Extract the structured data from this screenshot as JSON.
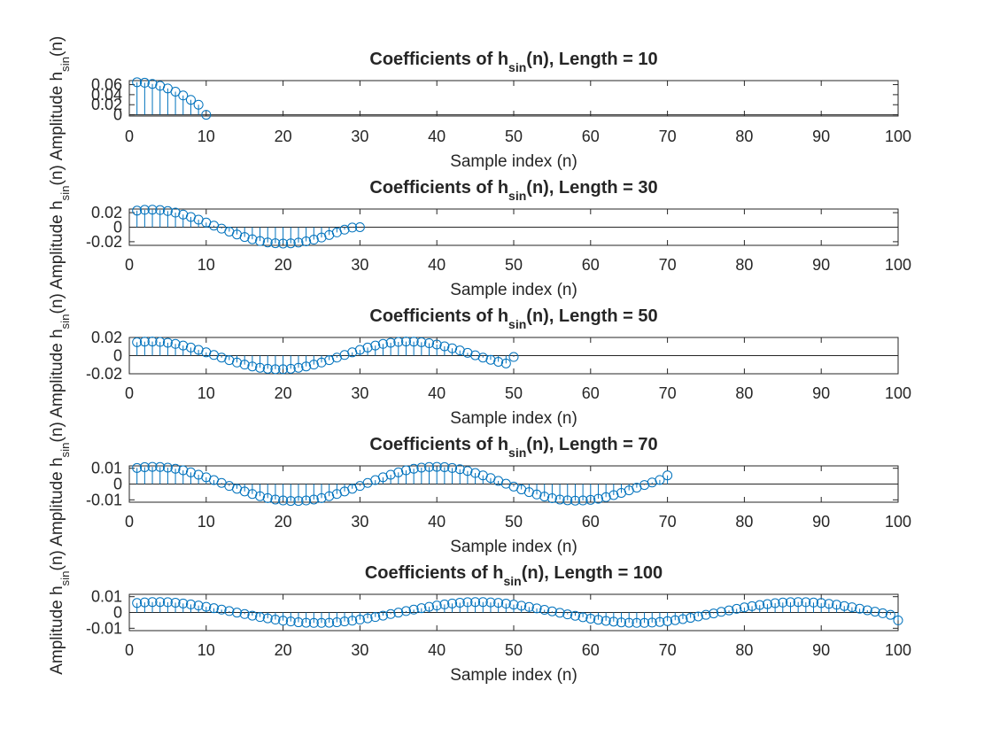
{
  "figure": {
    "background": "#ffffff",
    "axes_color": "#262626",
    "stem_color": "#0072BD"
  },
  "chart_data": [
    {
      "type": "stem",
      "title": {
        "pre": "Coefficients of h",
        "sub": "sin",
        "post": "(n), Length = 10"
      },
      "xlabel": "Sample index (n)",
      "ylabel": {
        "pre": "Amplitude h",
        "sub": "sin",
        "post": "(n)"
      },
      "xlim": [
        0,
        100
      ],
      "ylim": [
        -0.0025,
        0.068
      ],
      "xticks": [
        0,
        10,
        20,
        30,
        40,
        50,
        60,
        70,
        80,
        90,
        100
      ],
      "yticks": [
        0,
        0.02,
        0.04,
        0.06
      ],
      "ytick_labels": [
        "0",
        "0.02",
        "0.04",
        "0.06"
      ],
      "x": [
        1,
        2,
        3,
        4,
        5,
        6,
        7,
        8,
        9,
        10
      ],
      "y": [
        0.0648,
        0.0638,
        0.0614,
        0.0576,
        0.0524,
        0.046,
        0.0384,
        0.0297,
        0.02,
        0.0
      ]
    },
    {
      "type": "stem",
      "title": {
        "pre": "Coefficients of h",
        "sub": "sin",
        "post": "(n), Length = 30"
      },
      "xlabel": "Sample index (n)",
      "ylabel": {
        "pre": "Amplitude h",
        "sub": "sin",
        "post": "(n)"
      },
      "xlim": [
        0,
        100
      ],
      "ylim": [
        -0.025,
        0.025
      ],
      "xticks": [
        0,
        10,
        20,
        30,
        40,
        50,
        60,
        70,
        80,
        90,
        100
      ],
      "yticks": [
        -0.02,
        0,
        0.02
      ],
      "ytick_labels": [
        "-0.02",
        "0",
        "0.02"
      ],
      "x": [
        1,
        2,
        3,
        4,
        5,
        6,
        7,
        8,
        9,
        10,
        11,
        12,
        13,
        14,
        15,
        16,
        17,
        18,
        19,
        20,
        21,
        22,
        23,
        24,
        25,
        26,
        27,
        28,
        29,
        30
      ],
      "y": [
        0.0228,
        0.0239,
        0.0241,
        0.0236,
        0.0222,
        0.0201,
        0.0174,
        0.0141,
        0.0104,
        0.0064,
        0.0022,
        -0.002,
        -0.0061,
        -0.01,
        -0.0135,
        -0.0166,
        -0.0191,
        -0.021,
        -0.0221,
        -0.0225,
        -0.0222,
        -0.0212,
        -0.0195,
        -0.0171,
        -0.0142,
        -0.0108,
        -0.0072,
        -0.0034,
        -0.0005,
        0.0
      ]
    },
    {
      "type": "stem",
      "title": {
        "pre": "Coefficients of h",
        "sub": "sin",
        "post": "(n), Length = 50"
      },
      "xlabel": "Sample index (n)",
      "ylabel": {
        "pre": "Amplitude h",
        "sub": "sin",
        "post": "(n)"
      },
      "xlim": [
        0,
        100
      ],
      "ylim": [
        -0.02,
        0.02
      ],
      "xticks": [
        0,
        10,
        20,
        30,
        40,
        50,
        60,
        70,
        80,
        90,
        100
      ],
      "yticks": [
        -0.02,
        0,
        0.02
      ],
      "ytick_labels": [
        "-0.02",
        "0",
        "0.02"
      ],
      "x": [
        1,
        2,
        3,
        4,
        5,
        6,
        7,
        8,
        9,
        10,
        11,
        12,
        13,
        14,
        15,
        16,
        17,
        18,
        19,
        20,
        21,
        22,
        23,
        24,
        25,
        26,
        27,
        28,
        29,
        30,
        31,
        32,
        33,
        34,
        35,
        36,
        37,
        38,
        39,
        40,
        41,
        42,
        43,
        44,
        45,
        46,
        47,
        48,
        49,
        50
      ],
      "y": [
        0.0148,
        0.0154,
        0.0155,
        0.0151,
        0.0142,
        0.0129,
        0.0111,
        0.0089,
        0.0064,
        0.0036,
        0.0007,
        -0.0022,
        -0.005,
        -0.0076,
        -0.0099,
        -0.0119,
        -0.0134,
        -0.0145,
        -0.015,
        -0.015,
        -0.0145,
        -0.0134,
        -0.0119,
        -0.0099,
        -0.0076,
        -0.005,
        -0.0022,
        0.0007,
        0.0036,
        0.0064,
        0.0089,
        0.0111,
        0.0129,
        0.0142,
        0.0151,
        0.0155,
        0.0154,
        0.0148,
        0.0137,
        0.0122,
        0.0103,
        0.0081,
        0.0057,
        0.0031,
        0.0004,
        -0.0022,
        -0.0046,
        -0.0068,
        -0.0086,
        -0.0015
      ]
    },
    {
      "type": "stem",
      "title": {
        "pre": "Coefficients of h",
        "sub": "sin",
        "post": "(n), Length = 70"
      },
      "xlabel": "Sample index (n)",
      "ylabel": {
        "pre": "Amplitude h",
        "sub": "sin",
        "post": "(n)"
      },
      "xlim": [
        0,
        100
      ],
      "ylim": [
        -0.0115,
        0.0115
      ],
      "xticks": [
        0,
        10,
        20,
        30,
        40,
        50,
        60,
        70,
        80,
        90,
        100
      ],
      "yticks": [
        -0.01,
        0,
        0.01
      ],
      "ytick_labels": [
        "-0.01",
        "0",
        "0.01"
      ],
      "x": [
        1,
        2,
        3,
        4,
        5,
        6,
        7,
        8,
        9,
        10,
        11,
        12,
        13,
        14,
        15,
        16,
        17,
        18,
        19,
        20,
        21,
        22,
        23,
        24,
        25,
        26,
        27,
        28,
        29,
        30,
        31,
        32,
        33,
        34,
        35,
        36,
        37,
        38,
        39,
        40,
        41,
        42,
        43,
        44,
        45,
        46,
        47,
        48,
        49,
        50,
        51,
        52,
        53,
        54,
        55,
        56,
        57,
        58,
        59,
        60,
        61,
        62,
        63,
        64,
        65,
        66,
        67,
        68,
        69,
        70
      ],
      "y": [
        0.0102,
        0.0107,
        0.0109,
        0.0108,
        0.0104,
        0.0097,
        0.0087,
        0.0074,
        0.0059,
        0.0043,
        0.0025,
        0.0007,
        -0.0012,
        -0.003,
        -0.0047,
        -0.0063,
        -0.0077,
        -0.0089,
        -0.0098,
        -0.0104,
        -0.0107,
        -0.0107,
        -0.0104,
        -0.0098,
        -0.0089,
        -0.0077,
        -0.0063,
        -0.0047,
        -0.003,
        -0.0012,
        0.0007,
        0.0025,
        0.0043,
        0.0059,
        0.0074,
        0.0087,
        0.0097,
        0.0104,
        0.0108,
        0.0109,
        0.0107,
        0.0102,
        0.0094,
        0.0083,
        0.007,
        0.0055,
        0.0038,
        0.002,
        0.0002,
        -0.0016,
        -0.0034,
        -0.0051,
        -0.0066,
        -0.0079,
        -0.009,
        -0.0098,
        -0.0103,
        -0.0105,
        -0.0104,
        -0.01,
        -0.0093,
        -0.0083,
        -0.007,
        -0.0056,
        -0.004,
        -0.0023,
        -0.0006,
        0.001,
        0.0026,
        0.0055
      ]
    },
    {
      "type": "stem",
      "title": {
        "pre": "Coefficients of h",
        "sub": "sin",
        "post": "(n), Length = 100"
      },
      "xlabel": "Sample index (n)",
      "ylabel": {
        "pre": "Amplitude h",
        "sub": "sin",
        "post": "(n)"
      },
      "xlim": [
        0,
        100
      ],
      "ylim": [
        -0.0115,
        0.0115
      ],
      "xticks": [
        0,
        10,
        20,
        30,
        40,
        50,
        60,
        70,
        80,
        90,
        100
      ],
      "yticks": [
        -0.01,
        0,
        0.01
      ],
      "ytick_labels": [
        "-0.01",
        "0",
        "0.01"
      ],
      "x": [
        1,
        2,
        3,
        4,
        5,
        6,
        7,
        8,
        9,
        10,
        11,
        12,
        13,
        14,
        15,
        16,
        17,
        18,
        19,
        20,
        21,
        22,
        23,
        24,
        25,
        26,
        27,
        28,
        29,
        30,
        31,
        32,
        33,
        34,
        35,
        36,
        37,
        38,
        39,
        40,
        41,
        42,
        43,
        44,
        45,
        46,
        47,
        48,
        49,
        50,
        51,
        52,
        53,
        54,
        55,
        56,
        57,
        58,
        59,
        60,
        61,
        62,
        63,
        64,
        65,
        66,
        67,
        68,
        69,
        70,
        71,
        72,
        73,
        74,
        75,
        76,
        77,
        78,
        79,
        80,
        81,
        82,
        83,
        84,
        85,
        86,
        87,
        88,
        89,
        90,
        91,
        92,
        93,
        94,
        95,
        96,
        97,
        98,
        99,
        100
      ],
      "y": [
        0.006,
        0.0064,
        0.0066,
        0.0066,
        0.0065,
        0.0062,
        0.0057,
        0.0051,
        0.0044,
        0.0036,
        0.0027,
        0.0018,
        0.0009,
        -0.0001,
        -0.001,
        -0.002,
        -0.0029,
        -0.0037,
        -0.0045,
        -0.0052,
        -0.0057,
        -0.0062,
        -0.0065,
        -0.0066,
        -0.0066,
        -0.0065,
        -0.0062,
        -0.0057,
        -0.0052,
        -0.0045,
        -0.0037,
        -0.0029,
        -0.002,
        -0.001,
        -0.0001,
        0.0009,
        0.0018,
        0.0027,
        0.0036,
        0.0044,
        0.0051,
        0.0057,
        0.0062,
        0.0065,
        0.0066,
        0.0066,
        0.0064,
        0.0061,
        0.0056,
        0.005,
        0.0043,
        0.0035,
        0.0026,
        0.0017,
        0.0007,
        -0.0002,
        -0.0012,
        -0.0021,
        -0.003,
        -0.0039,
        -0.0046,
        -0.0053,
        -0.0058,
        -0.0063,
        -0.0065,
        -0.0066,
        -0.0066,
        -0.0064,
        -0.006,
        -0.0055,
        -0.0049,
        -0.0042,
        -0.0034,
        -0.0025,
        -0.0015,
        -0.0006,
        0.0004,
        0.0013,
        0.0023,
        0.0032,
        0.004,
        0.0047,
        0.0053,
        0.0059,
        0.0063,
        0.0065,
        0.0066,
        0.0065,
        0.0063,
        0.006,
        0.0055,
        0.0049,
        0.0041,
        0.0033,
        0.0024,
        0.0014,
        0.0005,
        -0.0005,
        -0.0015,
        -0.005
      ]
    }
  ]
}
